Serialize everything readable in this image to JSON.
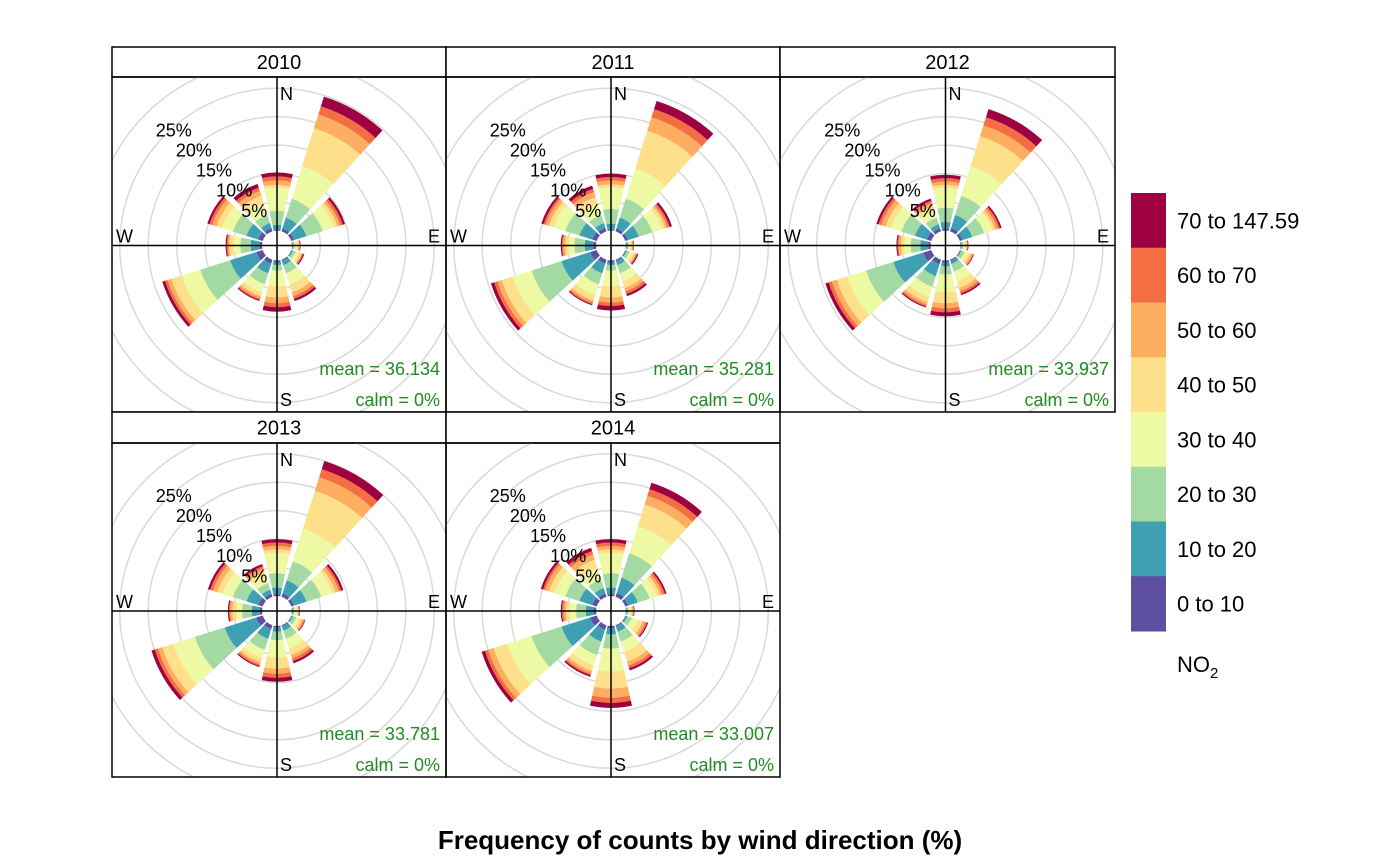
{
  "chart_data": {
    "type": "polar-stacked-bar",
    "title": "Frequency of counts by wind direction (%)",
    "directions": [
      "N",
      "NNE",
      "ENE",
      "E",
      "ESE",
      "SSE",
      "S",
      "SSW",
      "WSW",
      "W",
      "WNW",
      "NNW"
    ],
    "direction_degrees": [
      0,
      30,
      60,
      90,
      120,
      150,
      180,
      210,
      240,
      270,
      300,
      330
    ],
    "compass_labels": [
      "N",
      "E",
      "S",
      "W"
    ],
    "ring_labels": [
      "5%",
      "10%",
      "15%",
      "20%",
      "25%"
    ],
    "ring_values": [
      5,
      10,
      15,
      20,
      25,
      30
    ],
    "legend": {
      "title": "NO",
      "title_sub": "2",
      "bins": [
        "0 to 10",
        "10 to 20",
        "20 to 30",
        "30 to 40",
        "40 to 50",
        "50 to 60",
        "60 to 70",
        "70 to 147.59"
      ],
      "colors": [
        "#5E4FA2",
        "#3F9FB3",
        "#A3D9A3",
        "#EEF9A3",
        "#FEE08B",
        "#FDAE61",
        "#F46D43",
        "#9E0142"
      ]
    },
    "panels": [
      {
        "year": "2010",
        "mean_label": "mean = 36.134",
        "calm_label": "calm = 0%",
        "cumulative": [
          [
            0.2,
            1.0,
            3.5,
            7.5,
            8.0,
            8.8,
            9.5,
            10.2
          ],
          [
            0.5,
            2.5,
            6.0,
            12.0,
            19.0,
            21.5,
            23.0,
            24.8
          ],
          [
            0.5,
            2.8,
            5.8,
            7.8,
            8.5,
            9.0,
            9.5,
            9.9
          ],
          [
            0.1,
            0.2,
            0.5,
            0.9,
            1.2,
            1.3,
            1.4,
            1.5
          ],
          [
            0.1,
            0.3,
            0.8,
            1.3,
            1.8,
            2.0,
            2.2,
            2.4
          ],
          [
            0.2,
            1.0,
            2.5,
            4.5,
            6.0,
            6.7,
            7.2,
            7.6
          ],
          [
            0.3,
            0.8,
            1.8,
            4.5,
            6.5,
            7.5,
            8.2,
            9.0
          ],
          [
            0.7,
            2.5,
            4.5,
            6.0,
            6.7,
            7.1,
            7.4,
            7.6
          ],
          [
            1.2,
            6.0,
            11.5,
            15.0,
            16.8,
            17.5,
            18.0,
            18.5
          ],
          [
            0.5,
            2.0,
            3.8,
            5.0,
            5.7,
            6.0,
            6.2,
            6.4
          ],
          [
            0.8,
            3.0,
            5.5,
            7.5,
            8.5,
            9.3,
            9.8,
            10.2
          ],
          [
            0.6,
            1.5,
            3.0,
            5.0,
            6.5,
            7.4,
            8.0,
            8.7
          ]
        ]
      },
      {
        "year": "2011",
        "mean_label": "mean = 35.281",
        "calm_label": "calm = 0%",
        "cumulative": [
          [
            0.2,
            1.2,
            3.8,
            7.6,
            8.1,
            8.8,
            9.4,
            10.0
          ],
          [
            0.5,
            2.5,
            6.0,
            11.5,
            18.5,
            21.0,
            22.5,
            24.0
          ],
          [
            0.5,
            2.5,
            5.0,
            6.8,
            7.4,
            7.8,
            8.2,
            8.6
          ],
          [
            0.1,
            0.2,
            0.5,
            0.8,
            1.1,
            1.2,
            1.3,
            1.4
          ],
          [
            0.1,
            0.3,
            0.8,
            1.3,
            1.8,
            2.0,
            2.2,
            2.4
          ],
          [
            0.2,
            1.0,
            2.5,
            4.0,
            5.2,
            5.8,
            6.3,
            6.7
          ],
          [
            0.3,
            0.8,
            1.8,
            4.5,
            6.5,
            7.4,
            8.0,
            8.8
          ],
          [
            0.7,
            2.5,
            4.5,
            6.5,
            7.5,
            7.9,
            8.2,
            8.4
          ],
          [
            1.2,
            6.5,
            12.0,
            15.5,
            17.5,
            18.3,
            18.9,
            19.5
          ],
          [
            0.5,
            2.0,
            3.8,
            4.8,
            5.4,
            5.8,
            6.0,
            6.2
          ],
          [
            0.8,
            3.2,
            5.8,
            8.0,
            8.8,
            9.4,
            9.8,
            10.2
          ],
          [
            0.6,
            1.5,
            3.0,
            5.0,
            6.3,
            7.2,
            7.8,
            8.4
          ]
        ]
      },
      {
        "year": "2012",
        "mean_label": "mean = 33.937",
        "calm_label": "calm = 0%",
        "cumulative": [
          [
            0.3,
            1.5,
            4.0,
            7.5,
            8.0,
            8.6,
            9.2,
            9.8
          ],
          [
            0.6,
            3.0,
            6.5,
            12.0,
            17.5,
            19.5,
            21.0,
            22.5
          ],
          [
            0.5,
            2.3,
            4.5,
            6.0,
            6.5,
            7.0,
            7.4,
            7.7
          ],
          [
            0.1,
            0.2,
            0.5,
            0.8,
            1.1,
            1.2,
            1.3,
            1.4
          ],
          [
            0.1,
            0.3,
            0.9,
            1.5,
            2.0,
            2.3,
            2.5,
            2.6
          ],
          [
            0.2,
            0.8,
            2.2,
            4.0,
            5.2,
            5.8,
            6.2,
            6.5
          ],
          [
            0.3,
            1.0,
            2.5,
            5.5,
            7.5,
            8.4,
            9.1,
            9.8
          ],
          [
            0.8,
            3.0,
            5.0,
            6.8,
            7.8,
            8.3,
            8.6,
            8.8
          ],
          [
            1.5,
            7.0,
            12.0,
            15.5,
            17.4,
            18.3,
            18.9,
            19.5
          ],
          [
            0.4,
            1.8,
            3.5,
            4.6,
            5.2,
            5.6,
            5.8,
            6.0
          ],
          [
            0.8,
            3.0,
            5.5,
            7.4,
            8.4,
            9.2,
            9.7,
            10.1
          ],
          [
            0.5,
            1.3,
            2.5,
            3.8,
            4.6,
            5.2,
            5.6,
            6.0
          ]
        ]
      },
      {
        "year": "2013",
        "mean_label": "mean = 33.781",
        "calm_label": "calm = 0%",
        "cumulative": [
          [
            0.3,
            1.5,
            4.0,
            7.6,
            8.2,
            8.8,
            9.4,
            10.0
          ],
          [
            0.6,
            3.0,
            6.5,
            12.5,
            19.5,
            22.0,
            23.5,
            25.0
          ],
          [
            0.5,
            2.8,
            5.5,
            7.6,
            8.2,
            8.8,
            9.2,
            9.6
          ],
          [
            0.1,
            0.2,
            0.5,
            0.8,
            1.1,
            1.2,
            1.3,
            1.4
          ],
          [
            0.1,
            0.3,
            0.9,
            1.5,
            2.0,
            2.3,
            2.5,
            2.6
          ],
          [
            0.2,
            1.0,
            2.5,
            4.3,
            5.5,
            6.1,
            6.6,
            7.0
          ],
          [
            0.3,
            1.0,
            2.5,
            5.5,
            7.5,
            8.4,
            9.1,
            9.8
          ],
          [
            0.7,
            2.5,
            4.5,
            6.0,
            6.8,
            7.2,
            7.5,
            7.7
          ],
          [
            1.2,
            7.0,
            12.5,
            16.5,
            18.5,
            19.3,
            19.9,
            20.5
          ],
          [
            0.4,
            1.8,
            3.5,
            4.5,
            5.2,
            5.6,
            5.8,
            6.0
          ],
          [
            0.8,
            3.0,
            5.5,
            7.4,
            8.4,
            9.2,
            9.7,
            10.1
          ],
          [
            0.5,
            1.3,
            2.5,
            3.8,
            4.6,
            5.2,
            5.6,
            6.0
          ]
        ]
      },
      {
        "year": "2014",
        "mean_label": "mean = 33.007",
        "calm_label": "calm = 0%",
        "cumulative": [
          [
            0.3,
            1.5,
            4.0,
            7.6,
            8.2,
            8.8,
            9.4,
            10.0
          ],
          [
            0.7,
            3.5,
            8.0,
            13.0,
            17.0,
            18.6,
            19.8,
            21.0
          ],
          [
            0.5,
            2.3,
            4.5,
            5.8,
            6.4,
            6.9,
            7.3,
            7.6
          ],
          [
            0.1,
            0.2,
            0.5,
            0.8,
            1.1,
            1.3,
            1.4,
            1.5
          ],
          [
            0.1,
            0.4,
            1.2,
            2.3,
            3.2,
            3.7,
            4.0,
            4.2
          ],
          [
            0.2,
            1.2,
            3.0,
            5.0,
            6.7,
            7.4,
            7.9,
            8.3
          ],
          [
            0.4,
            1.5,
            4.0,
            8.0,
            11.0,
            12.6,
            13.5,
            14.4
          ],
          [
            0.8,
            3.0,
            5.5,
            7.4,
            8.4,
            8.9,
            9.2,
            9.5
          ],
          [
            1.2,
            6.5,
            12.0,
            16.5,
            19.0,
            20.0,
            20.6,
            21.2
          ],
          [
            0.4,
            1.8,
            3.5,
            4.6,
            5.3,
            5.7,
            6.0,
            6.2
          ],
          [
            0.8,
            3.2,
            5.8,
            7.8,
            8.8,
            9.5,
            9.9,
            10.3
          ],
          [
            0.6,
            1.6,
            3.2,
            5.2,
            6.8,
            7.8,
            8.4,
            9.0
          ]
        ]
      }
    ]
  }
}
